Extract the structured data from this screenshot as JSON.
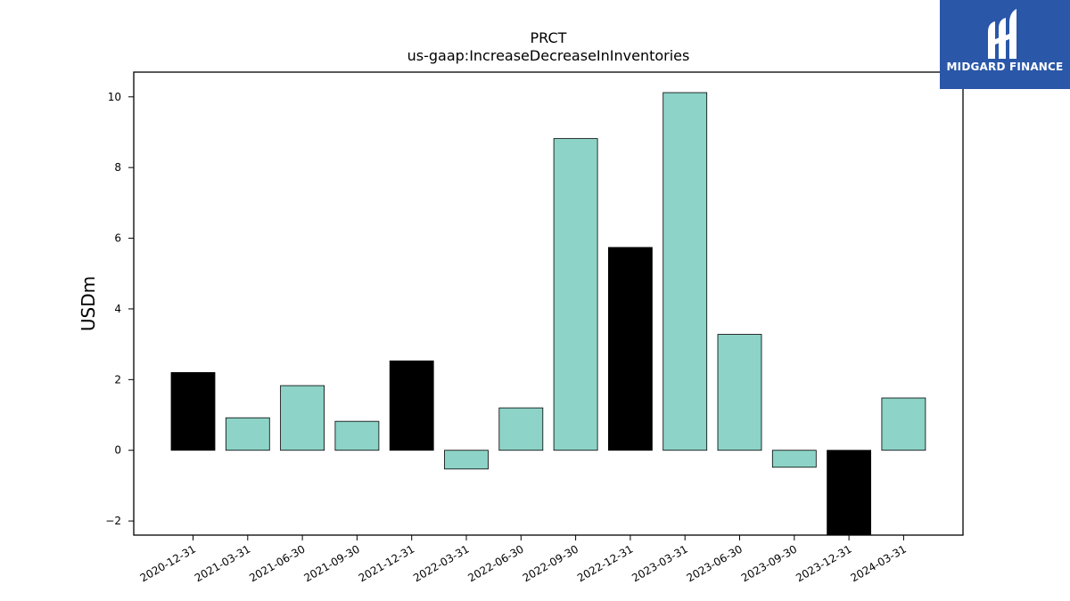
{
  "chart_data": {
    "type": "bar",
    "title": "PRCT",
    "subtitle": "us-gaap:IncreaseDecreaseInInventories",
    "xlabel": "",
    "ylabel": "USDm",
    "categories": [
      "2020-12-31",
      "2021-03-31",
      "2021-06-30",
      "2021-09-30",
      "2021-12-31",
      "2022-03-31",
      "2022-06-30",
      "2022-09-30",
      "2022-12-31",
      "2023-03-31",
      "2023-06-30",
      "2023-09-30",
      "2023-12-31",
      "2024-03-31"
    ],
    "values": [
      2.2,
      0.92,
      1.83,
      0.82,
      2.53,
      -0.53,
      1.2,
      8.82,
      5.74,
      10.12,
      3.28,
      -0.48,
      -2.4,
      1.48
    ],
    "bar_colors": [
      "#000000",
      "#8dd3c7",
      "#8dd3c7",
      "#8dd3c7",
      "#000000",
      "#8dd3c7",
      "#8dd3c7",
      "#8dd3c7",
      "#000000",
      "#8dd3c7",
      "#8dd3c7",
      "#8dd3c7",
      "#000000",
      "#8dd3c7"
    ],
    "yticks": [
      -2,
      0,
      2,
      4,
      6,
      8,
      10
    ],
    "ytick_labels": [
      "−2",
      "0",
      "2",
      "4",
      "6",
      "8",
      "10"
    ],
    "ylim": [
      -2.4,
      10.7
    ],
    "grid": false,
    "legend": "none"
  },
  "logo": {
    "text": "MIDGARD FINANCE",
    "background": "#2a57a8"
  }
}
